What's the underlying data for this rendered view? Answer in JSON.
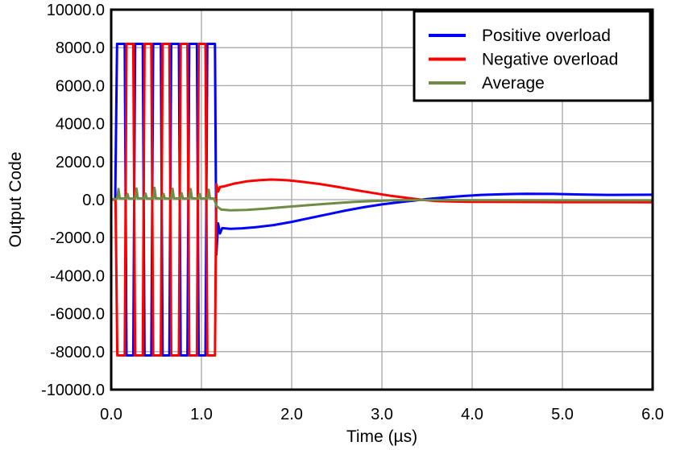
{
  "chart_data": {
    "type": "line",
    "title": "",
    "xlabel": "Time (µs)",
    "ylabel": "Output Code",
    "xlim": [
      0,
      6
    ],
    "ylim": [
      -10000,
      10000
    ],
    "grid": true,
    "legend_position": "top-right",
    "xticks": {
      "values": [
        0,
        1,
        2,
        3,
        4,
        5,
        6
      ],
      "labels": [
        "0.0",
        "1.0",
        "2.0",
        "3.0",
        "4.0",
        "5.0",
        "6.0"
      ]
    },
    "yticks": {
      "values": [
        10000,
        8000,
        6000,
        4000,
        2000,
        0,
        -2000,
        -4000,
        -6000,
        -8000,
        -10000
      ],
      "labels": [
        "10000.0",
        "8000.0",
        "6000.0",
        "4000.0",
        "2000.0",
        "0.0",
        "-2000.0",
        "-4000.0",
        "-6000.0",
        "-8000.0",
        "-10000.0"
      ]
    },
    "series": [
      {
        "name": "Positive overload",
        "color": "#0000FF",
        "points": [
          [
            0,
            0
          ],
          [
            0.045,
            0
          ],
          [
            0.065,
            8200
          ],
          [
            0.15,
            8200
          ],
          [
            0.17,
            -8200
          ],
          [
            0.245,
            -8200
          ],
          [
            0.265,
            8200
          ],
          [
            0.35,
            8200
          ],
          [
            0.37,
            -8200
          ],
          [
            0.445,
            -8200
          ],
          [
            0.465,
            8200
          ],
          [
            0.55,
            8200
          ],
          [
            0.57,
            -8200
          ],
          [
            0.645,
            -8200
          ],
          [
            0.665,
            8200
          ],
          [
            0.75,
            8200
          ],
          [
            0.77,
            -8200
          ],
          [
            0.845,
            -8200
          ],
          [
            0.865,
            8200
          ],
          [
            0.95,
            8200
          ],
          [
            0.97,
            -8200
          ],
          [
            1.045,
            -8200
          ],
          [
            1.065,
            8200
          ],
          [
            1.15,
            8200
          ],
          [
            1.165,
            -2900
          ],
          [
            1.185,
            -1250
          ],
          [
            1.205,
            -1780
          ],
          [
            1.23,
            -1500
          ],
          [
            1.32,
            -1540
          ],
          [
            1.45,
            -1510
          ],
          [
            1.6,
            -1450
          ],
          [
            1.8,
            -1340
          ],
          [
            2.0,
            -1170
          ],
          [
            2.2,
            -970
          ],
          [
            2.4,
            -770
          ],
          [
            2.6,
            -570
          ],
          [
            2.8,
            -400
          ],
          [
            3.0,
            -250
          ],
          [
            3.2,
            -130
          ],
          [
            3.35,
            -50
          ],
          [
            3.5,
            30
          ],
          [
            3.7,
            120
          ],
          [
            3.9,
            190
          ],
          [
            4.1,
            250
          ],
          [
            4.35,
            290
          ],
          [
            4.6,
            310
          ],
          [
            4.9,
            300
          ],
          [
            5.2,
            270
          ],
          [
            5.5,
            250
          ],
          [
            5.75,
            255
          ],
          [
            6.0,
            260
          ]
        ]
      },
      {
        "name": "Negative overload",
        "color": "#FF0000",
        "points": [
          [
            0,
            0
          ],
          [
            0.048,
            0
          ],
          [
            0.068,
            -8200
          ],
          [
            0.15,
            -8200
          ],
          [
            0.17,
            8200
          ],
          [
            0.245,
            8200
          ],
          [
            0.265,
            -8200
          ],
          [
            0.35,
            -8200
          ],
          [
            0.37,
            8200
          ],
          [
            0.445,
            8200
          ],
          [
            0.465,
            -8200
          ],
          [
            0.55,
            -8200
          ],
          [
            0.57,
            8200
          ],
          [
            0.645,
            8200
          ],
          [
            0.665,
            -8200
          ],
          [
            0.75,
            -8200
          ],
          [
            0.77,
            8200
          ],
          [
            0.845,
            8200
          ],
          [
            0.865,
            -8200
          ],
          [
            0.95,
            -8200
          ],
          [
            0.97,
            8200
          ],
          [
            1.045,
            8200
          ],
          [
            1.065,
            -8200
          ],
          [
            1.15,
            -8200
          ],
          [
            1.165,
            820
          ],
          [
            1.185,
            430
          ],
          [
            1.205,
            660
          ],
          [
            1.25,
            700
          ],
          [
            1.35,
            830
          ],
          [
            1.5,
            960
          ],
          [
            1.65,
            1030
          ],
          [
            1.78,
            1060
          ],
          [
            1.95,
            1020
          ],
          [
            2.1,
            950
          ],
          [
            2.3,
            830
          ],
          [
            2.5,
            680
          ],
          [
            2.7,
            510
          ],
          [
            2.9,
            350
          ],
          [
            3.1,
            200
          ],
          [
            3.3,
            80
          ],
          [
            3.45,
            -10
          ],
          [
            3.6,
            -70
          ],
          [
            3.8,
            -100
          ],
          [
            4.0,
            -115
          ],
          [
            4.5,
            -125
          ],
          [
            5.0,
            -130
          ],
          [
            5.5,
            -130
          ],
          [
            6.0,
            -135
          ]
        ]
      },
      {
        "name": "Average",
        "color": "#6F8B46",
        "points": [
          [
            0,
            20
          ],
          [
            0.055,
            40
          ],
          [
            0.065,
            60
          ],
          [
            0.08,
            560
          ],
          [
            0.095,
            70
          ],
          [
            0.165,
            60
          ],
          [
            0.18,
            300
          ],
          [
            0.195,
            60
          ],
          [
            0.265,
            60
          ],
          [
            0.28,
            590
          ],
          [
            0.295,
            70
          ],
          [
            0.365,
            60
          ],
          [
            0.38,
            320
          ],
          [
            0.395,
            60
          ],
          [
            0.465,
            60
          ],
          [
            0.48,
            620
          ],
          [
            0.495,
            70
          ],
          [
            0.565,
            60
          ],
          [
            0.58,
            300
          ],
          [
            0.595,
            60
          ],
          [
            0.665,
            60
          ],
          [
            0.68,
            570
          ],
          [
            0.695,
            70
          ],
          [
            0.765,
            60
          ],
          [
            0.78,
            340
          ],
          [
            0.795,
            60
          ],
          [
            0.865,
            60
          ],
          [
            0.88,
            560
          ],
          [
            0.895,
            70
          ],
          [
            0.965,
            60
          ],
          [
            0.98,
            300
          ],
          [
            0.995,
            60
          ],
          [
            1.065,
            60
          ],
          [
            1.08,
            520
          ],
          [
            1.095,
            70
          ],
          [
            1.14,
            50
          ],
          [
            1.17,
            -350
          ],
          [
            1.22,
            -520
          ],
          [
            1.32,
            -560
          ],
          [
            1.5,
            -540
          ],
          [
            1.7,
            -480
          ],
          [
            1.9,
            -400
          ],
          [
            2.1,
            -320
          ],
          [
            2.3,
            -250
          ],
          [
            2.5,
            -180
          ],
          [
            2.7,
            -120
          ],
          [
            2.9,
            -70
          ],
          [
            3.1,
            -40
          ],
          [
            3.4,
            -15
          ],
          [
            3.7,
            -20
          ],
          [
            4.0,
            -30
          ],
          [
            4.5,
            -35
          ],
          [
            5.0,
            -40
          ],
          [
            5.5,
            -40
          ],
          [
            6.0,
            -40
          ]
        ]
      }
    ]
  },
  "style": {
    "background": "#FFFFFF",
    "grid_color": "#A8A8A8",
    "axis_color": "#000000",
    "line_width": 3,
    "frame_width": 3
  }
}
